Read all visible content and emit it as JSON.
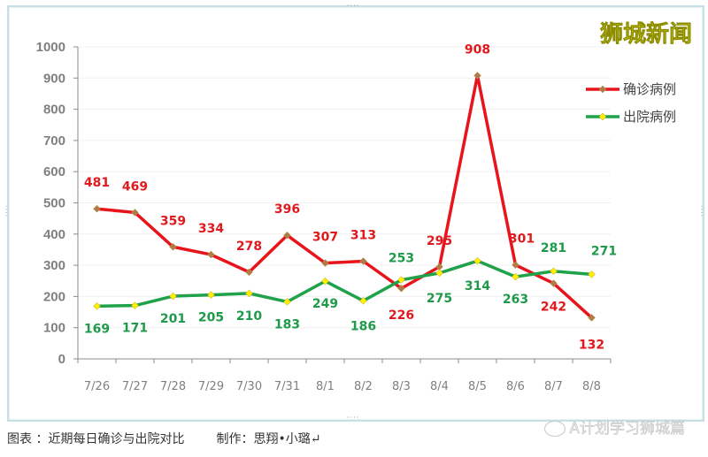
{
  "brand": "狮城新闻",
  "caption": {
    "label": "图表 ：近期每日确诊与出院对比",
    "credit": "制作：思翔•小璐↵"
  },
  "watermark": "A计划学习狮城篇",
  "legend": [
    {
      "name": "确诊病例",
      "color": "#e8141b",
      "marker": "#b07a4a"
    },
    {
      "name": "出院病例",
      "color": "#1fa24a",
      "marker": "#ffee00"
    }
  ],
  "colors": {
    "confirmed": "#e8141b",
    "discharged": "#1fa24a",
    "axis": "#7f7f7f",
    "grid": "#f0f0f0"
  },
  "chart_data": {
    "type": "line",
    "title": "",
    "xlabel": "",
    "ylabel": "",
    "ylim": [
      0,
      1000
    ],
    "yticks": [
      0,
      100,
      200,
      300,
      400,
      500,
      600,
      700,
      800,
      900,
      1000
    ],
    "grid": true,
    "legend_position": "right",
    "categories": [
      "7/26",
      "7/27",
      "7/28",
      "7/29",
      "7/30",
      "7/31",
      "8/1",
      "8/2",
      "8/3",
      "8/4",
      "8/5",
      "8/6",
      "8/7",
      "8/8"
    ],
    "series": [
      {
        "name": "确诊病例",
        "values": [
          481,
          469,
          359,
          334,
          278,
          396,
          307,
          313,
          226,
          295,
          908,
          301,
          242,
          132
        ]
      },
      {
        "name": "出院病例",
        "values": [
          169,
          171,
          201,
          205,
          210,
          183,
          249,
          186,
          253,
          275,
          314,
          263,
          281,
          271
        ]
      }
    ]
  }
}
